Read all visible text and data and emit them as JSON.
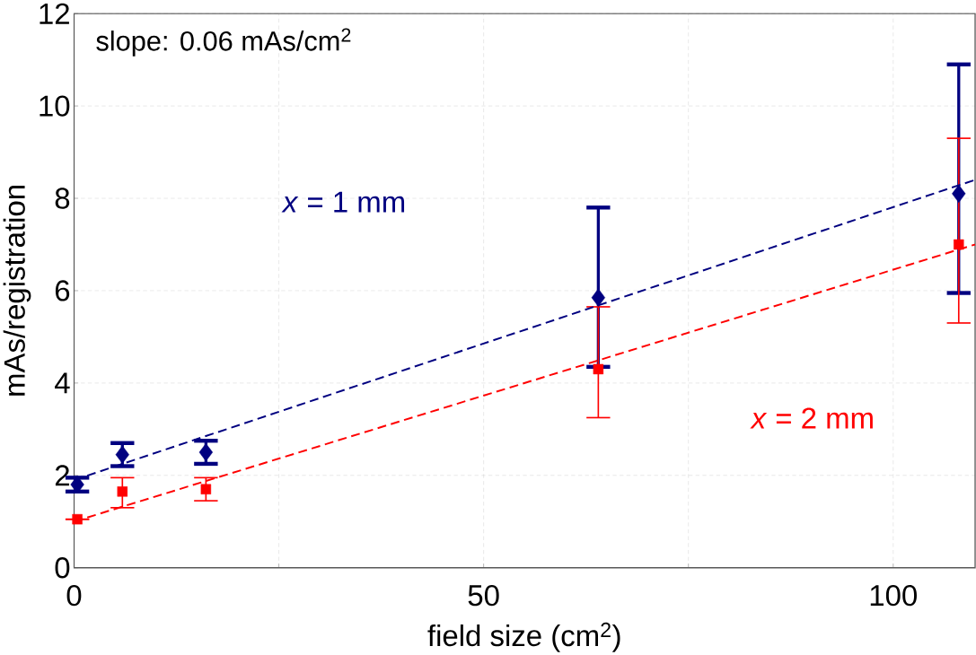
{
  "chart_data": {
    "type": "scatter",
    "xlabel": "field size (cm$^{2}$)",
    "ylabel": "mAs/registration",
    "annotations": [
      "slope: 0.06 mAs/cm$^{2}$"
    ],
    "xlim": [
      0,
      110
    ],
    "ylim": [
      0,
      12
    ],
    "xticks": [
      0,
      {
        "value": 25,
        "label": null
      },
      50,
      {
        "value": 75,
        "label": null
      },
      100
    ],
    "yticks": [
      0,
      2,
      4,
      6,
      8,
      10,
      12
    ],
    "grid": true,
    "series": [
      {
        "name": "*x* = 1 mm",
        "color": "#000080",
        "marker": "diamond",
        "x": [
          0.4,
          5.9,
          16.1,
          64,
          108
        ],
        "values": [
          1.8,
          2.45,
          2.5,
          5.85,
          8.1
        ],
        "errors": [
          [
            1.65,
            1.95
          ],
          [
            2.2,
            2.7
          ],
          [
            2.25,
            2.75
          ],
          [
            4.35,
            7.8
          ],
          [
            5.95,
            10.9
          ]
        ]
      },
      {
        "name": "*x* = 2 mm",
        "color": "#ff0000",
        "marker": "square",
        "x": [
          0.4,
          5.9,
          16.1,
          64,
          108
        ],
        "values": [
          1.05,
          1.65,
          1.7,
          4.3,
          7.0
        ],
        "errors": [
          null,
          [
            1.3,
            1.95
          ],
          [
            1.45,
            1.95
          ],
          [
            3.25,
            5.65
          ],
          [
            5.3,
            9.3
          ]
        ]
      },
      {
        "type": "line",
        "color": "#000080",
        "line_style": "dashed",
        "marker": "none",
        "x": [
          0,
          110
        ],
        "values": [
          1.9,
          8.4
        ]
      },
      {
        "type": "line",
        "color": "#ff0000",
        "line_style": "dashed",
        "marker": "none",
        "x": [
          0,
          110
        ],
        "values": [
          1.0,
          7.0
        ]
      }
    ]
  }
}
